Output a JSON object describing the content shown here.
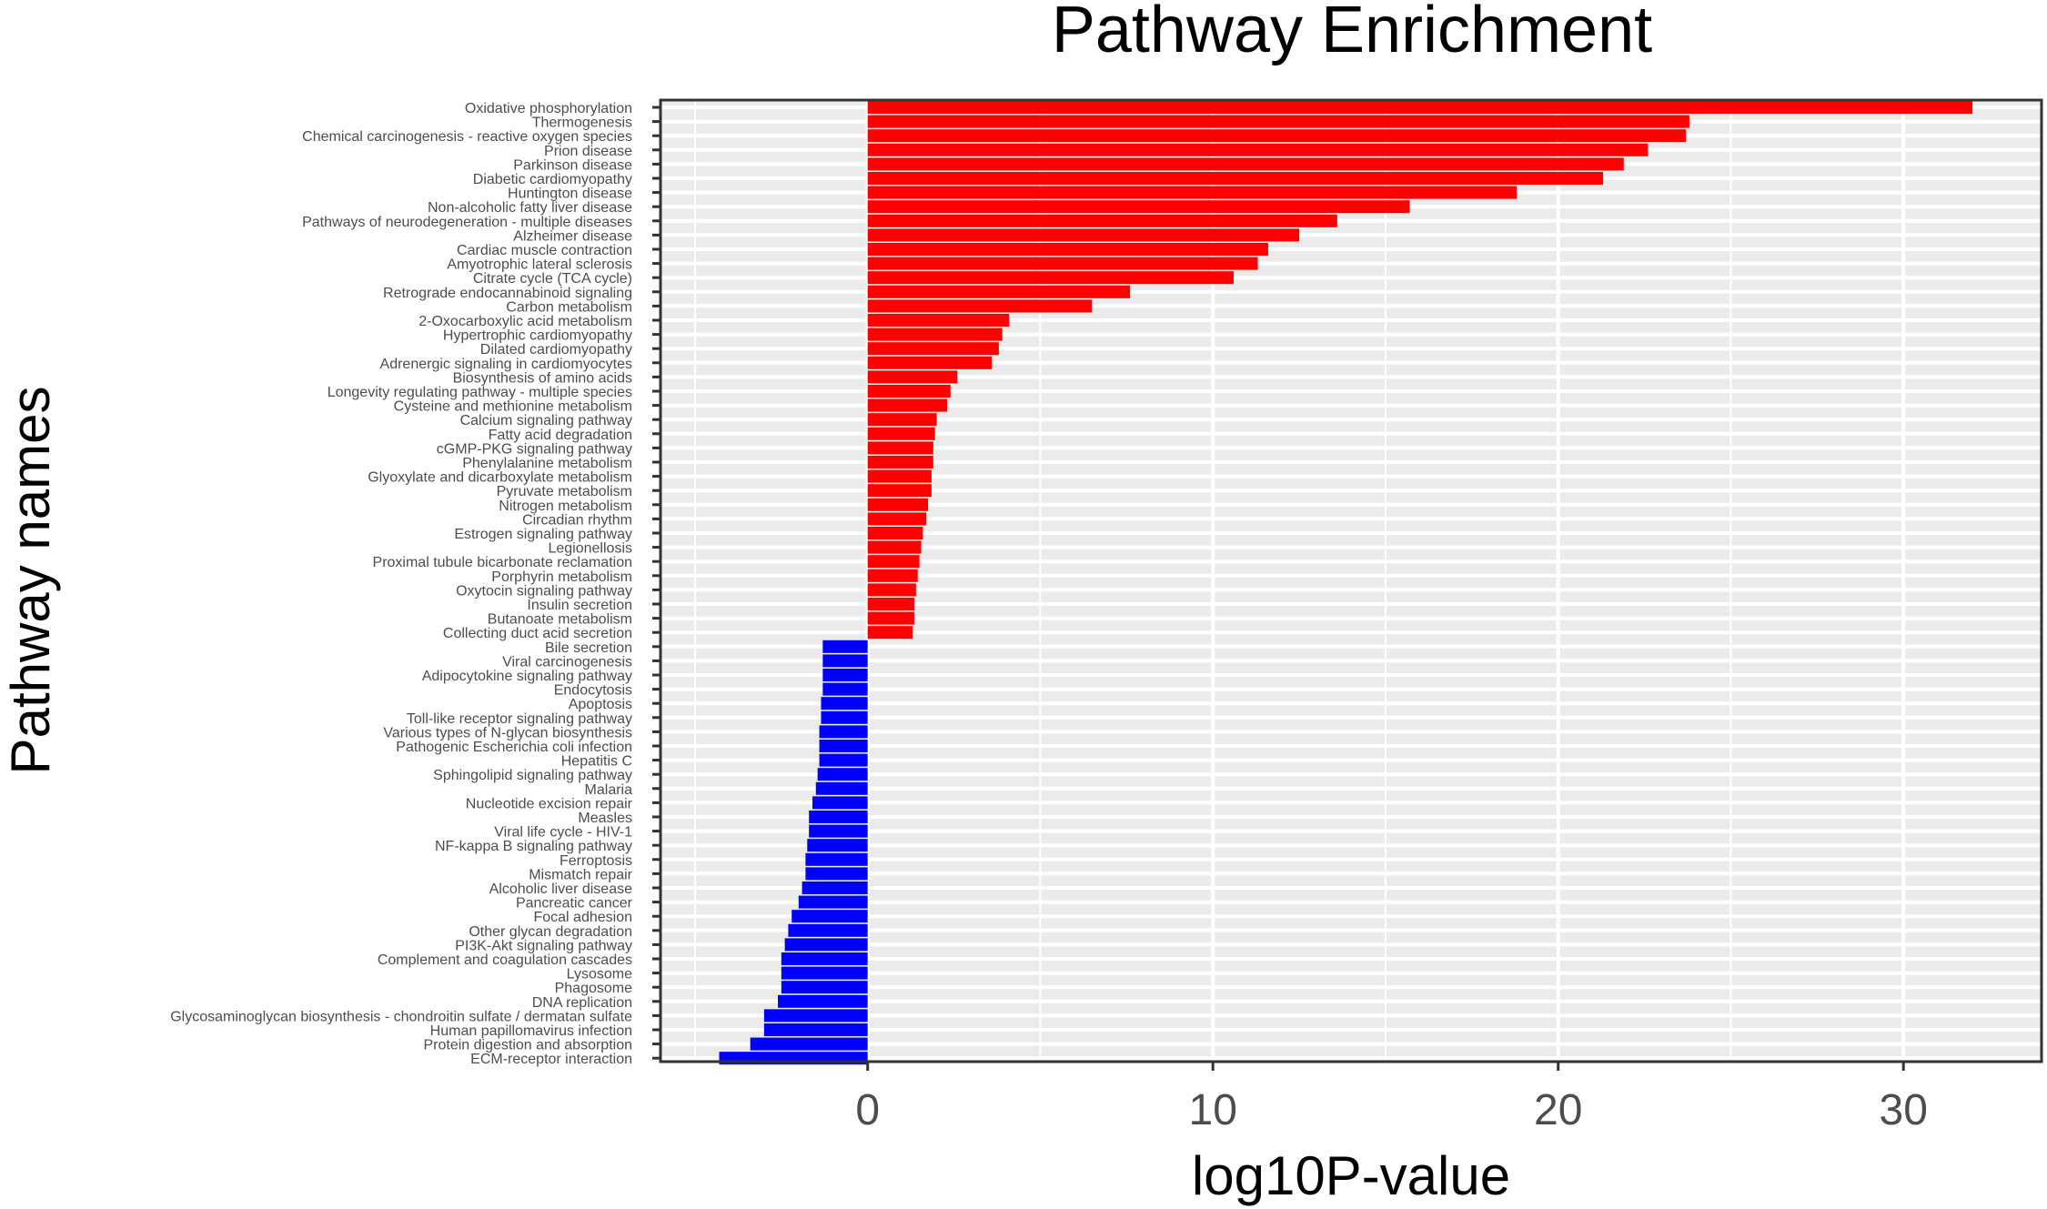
{
  "chart_data": {
    "type": "bar",
    "orientation": "horizontal",
    "title": "Pathway Enrichment",
    "xlabel": "log10P-value",
    "ylabel": "Pathway names",
    "xlim": [
      -6,
      34
    ],
    "x_ticks": [
      0,
      10,
      20,
      30
    ],
    "grid": true,
    "legend": "none",
    "colors": {
      "positive": "#ff0000",
      "negative": "#0000ff",
      "panel_bg": "#ebebeb",
      "grid": "#ffffff"
    },
    "categories": [
      "Oxidative phosphorylation",
      "Thermogenesis",
      "Chemical carcinogenesis - reactive oxygen species",
      "Prion disease",
      "Parkinson disease",
      "Diabetic cardiomyopathy",
      "Huntington disease",
      "Non-alcoholic fatty liver disease",
      "Pathways of neurodegeneration - multiple diseases",
      "Alzheimer disease",
      "Cardiac muscle contraction",
      "Amyotrophic lateral sclerosis",
      "Citrate cycle (TCA cycle)",
      "Retrograde endocannabinoid signaling",
      "Carbon metabolism",
      "2-Oxocarboxylic acid metabolism",
      "Hypertrophic cardiomyopathy",
      "Dilated cardiomyopathy",
      "Adrenergic signaling in cardiomyocytes",
      "Biosynthesis of amino acids",
      "Longevity regulating pathway - multiple species",
      "Cysteine and methionine metabolism",
      "Calcium signaling pathway",
      "Fatty acid degradation",
      "cGMP-PKG signaling pathway",
      "Phenylalanine metabolism",
      "Glyoxylate and dicarboxylate metabolism",
      "Pyruvate metabolism",
      "Nitrogen metabolism",
      "Circadian rhythm",
      "Estrogen signaling pathway",
      "Legionellosis",
      "Proximal tubule bicarbonate reclamation",
      "Porphyrin metabolism",
      "Oxytocin signaling pathway",
      "Insulin secretion",
      "Butanoate metabolism",
      "Collecting duct acid secretion",
      "Bile secretion",
      "Viral carcinogenesis",
      "Adipocytokine signaling pathway",
      "Endocytosis",
      "Apoptosis",
      "Toll-like receptor signaling pathway",
      "Various types of N-glycan biosynthesis",
      "Pathogenic Escherichia coli infection",
      "Hepatitis C",
      "Sphingolipid signaling pathway",
      "Malaria",
      "Nucleotide excision repair",
      "Measles",
      "Viral life cycle - HIV-1",
      "NF-kappa B signaling pathway",
      "Ferroptosis",
      "Mismatch repair",
      "Alcoholic liver disease",
      "Pancreatic cancer",
      "Focal adhesion",
      "Other glycan degradation",
      "PI3K-Akt signaling pathway",
      "Complement and coagulation cascades",
      "Lysosome",
      "Phagosome",
      "DNA replication",
      "Glycosaminoglycan biosynthesis - chondroitin sulfate / dermatan sulfate",
      "Human papillomavirus infection",
      "Protein digestion and absorption",
      "ECM-receptor interaction"
    ],
    "values": [
      32.0,
      23.8,
      23.7,
      22.6,
      21.9,
      21.3,
      18.8,
      15.7,
      13.6,
      12.5,
      11.6,
      11.3,
      10.6,
      7.6,
      6.5,
      4.1,
      3.9,
      3.8,
      3.6,
      2.6,
      2.4,
      2.3,
      2.0,
      1.95,
      1.9,
      1.9,
      1.85,
      1.85,
      1.75,
      1.7,
      1.6,
      1.55,
      1.5,
      1.45,
      1.4,
      1.35,
      1.35,
      1.3,
      -1.3,
      -1.3,
      -1.3,
      -1.3,
      -1.35,
      -1.35,
      -1.4,
      -1.4,
      -1.4,
      -1.45,
      -1.5,
      -1.6,
      -1.7,
      -1.7,
      -1.75,
      -1.8,
      -1.8,
      -1.9,
      -2.0,
      -2.2,
      -2.3,
      -2.4,
      -2.5,
      -2.5,
      -2.5,
      -2.6,
      -3.0,
      -3.0,
      -3.4,
      -4.3
    ]
  }
}
